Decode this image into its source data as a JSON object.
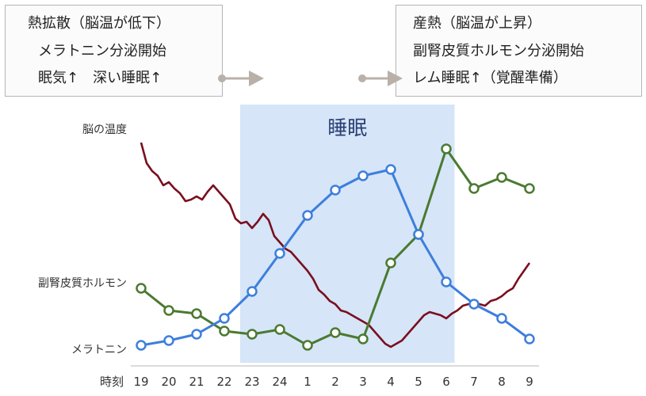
{
  "notes": {
    "left": {
      "line1": "熱拡散（脳温が低下）",
      "line2": "メラトニン分泌開始",
      "line3": "眠気↑　深い睡眠↑"
    },
    "right": {
      "line1": "産熱（脳温が上昇）",
      "line2": "副腎皮質ホルモン分泌開始",
      "line3": "レム睡眠↑（覚醒準備）"
    }
  },
  "colors": {
    "brain_temp": "#7a0f1e",
    "cortisol": "#4a7a30",
    "melatonin": "#3d7fdb",
    "sleep_band": "#d6e5f8",
    "arrow": "#b9b1a9"
  },
  "chart_data": {
    "type": "line",
    "title": "",
    "xlabel": "時刻",
    "ylabel": "",
    "x": [
      "19",
      "20",
      "21",
      "22",
      "23",
      "24",
      "1",
      "2",
      "3",
      "4",
      "5",
      "6",
      "7",
      "8",
      "9"
    ],
    "region": {
      "label": "睡眠",
      "from": "22",
      "to": "6.7"
    },
    "row_labels": {
      "brain_temp": "脳の温度",
      "cortisol": "副腎皮質ホルモン",
      "melatonin": "メラトニン"
    },
    "series": [
      {
        "key": "melatonin",
        "name": "メラトニン",
        "values": [
          0.05,
          0.08,
          0.12,
          0.22,
          0.39,
          0.63,
          0.87,
          1.03,
          1.12,
          1.16,
          0.75,
          0.45,
          0.31,
          0.22,
          0.09
        ]
      },
      {
        "key": "cortisol",
        "name": "副腎皮質ホルモン",
        "values": [
          0.41,
          0.27,
          0.25,
          0.14,
          0.12,
          0.15,
          0.05,
          0.13,
          0.09,
          0.57,
          0.75,
          1.29,
          1.04,
          1.11,
          1.04
        ]
      },
      {
        "key": "brain_temp",
        "name": "脳の温度",
        "points": [
          [
            19.0,
            1.33
          ],
          [
            19.2,
            1.2
          ],
          [
            19.4,
            1.15
          ],
          [
            19.6,
            1.12
          ],
          [
            19.8,
            1.06
          ],
          [
            20.0,
            1.08
          ],
          [
            20.2,
            1.04
          ],
          [
            20.4,
            1.01
          ],
          [
            20.6,
            0.96
          ],
          [
            20.8,
            0.97
          ],
          [
            21.0,
            0.99
          ],
          [
            21.2,
            0.97
          ],
          [
            21.4,
            1.02
          ],
          [
            21.6,
            1.06
          ],
          [
            21.8,
            1.02
          ],
          [
            22.0,
            0.98
          ],
          [
            22.2,
            0.94
          ],
          [
            22.4,
            0.85
          ],
          [
            22.6,
            0.82
          ],
          [
            22.8,
            0.83
          ],
          [
            23.0,
            0.79
          ],
          [
            23.2,
            0.83
          ],
          [
            23.4,
            0.88
          ],
          [
            23.6,
            0.84
          ],
          [
            23.8,
            0.74
          ],
          [
            24.0,
            0.7
          ],
          [
            24.2,
            0.66
          ],
          [
            24.4,
            0.64
          ],
          [
            24.6,
            0.6
          ],
          [
            24.8,
            0.56
          ],
          [
            25.0,
            0.52
          ],
          [
            25.2,
            0.47
          ],
          [
            25.4,
            0.4
          ],
          [
            25.6,
            0.37
          ],
          [
            25.8,
            0.33
          ],
          [
            26.0,
            0.31
          ],
          [
            26.2,
            0.27
          ],
          [
            26.4,
            0.26
          ],
          [
            26.6,
            0.24
          ],
          [
            26.8,
            0.22
          ],
          [
            27.0,
            0.2
          ],
          [
            27.2,
            0.18
          ],
          [
            27.4,
            0.14
          ],
          [
            27.6,
            0.1
          ],
          [
            27.8,
            0.06
          ],
          [
            28.0,
            0.04
          ],
          [
            28.2,
            0.06
          ],
          [
            28.4,
            0.08
          ],
          [
            28.6,
            0.12
          ],
          [
            28.8,
            0.16
          ],
          [
            29.0,
            0.2
          ],
          [
            29.2,
            0.24
          ],
          [
            29.4,
            0.26
          ],
          [
            29.6,
            0.25
          ],
          [
            29.8,
            0.24
          ],
          [
            30.0,
            0.22
          ],
          [
            30.2,
            0.25
          ],
          [
            30.4,
            0.27
          ],
          [
            30.6,
            0.3
          ],
          [
            30.8,
            0.31
          ],
          [
            31.0,
            0.32
          ],
          [
            31.2,
            0.31
          ],
          [
            31.4,
            0.3
          ],
          [
            31.6,
            0.33
          ],
          [
            31.8,
            0.34
          ],
          [
            32.0,
            0.36
          ],
          [
            32.2,
            0.39
          ],
          [
            32.4,
            0.41
          ],
          [
            32.6,
            0.47
          ],
          [
            32.8,
            0.52
          ],
          [
            33.0,
            0.57
          ]
        ]
      }
    ],
    "ylim": [
      0,
      1.4
    ],
    "grid": false,
    "legend": "none"
  }
}
